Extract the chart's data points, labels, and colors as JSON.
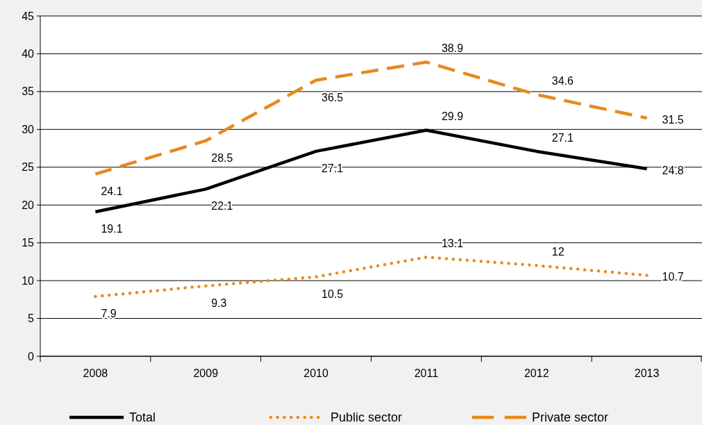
{
  "chart_data": {
    "type": "line",
    "categories": [
      "2008",
      "2009",
      "2010",
      "2011",
      "2012",
      "2013"
    ],
    "series": [
      {
        "name": "Total",
        "color": "#000000",
        "line_style": "solid",
        "values": [
          19.1,
          22.1,
          27.1,
          29.9,
          27.1,
          24.8
        ]
      },
      {
        "name": "Public sector",
        "color": "#e8891c",
        "line_style": "dotted",
        "values": [
          7.9,
          9.3,
          10.5,
          13.1,
          12,
          10.7
        ]
      },
      {
        "name": "Private sector",
        "color": "#e8891c",
        "line_style": "dashed",
        "values": [
          24.1,
          28.5,
          36.5,
          38.9,
          34.6,
          31.5
        ]
      }
    ],
    "ylim": [
      0,
      45
    ],
    "yticks": [
      0,
      5,
      10,
      15,
      20,
      25,
      30,
      35,
      40,
      45
    ],
    "grid": "y",
    "legend": "bottom",
    "data_labels": true,
    "marker": "none"
  }
}
